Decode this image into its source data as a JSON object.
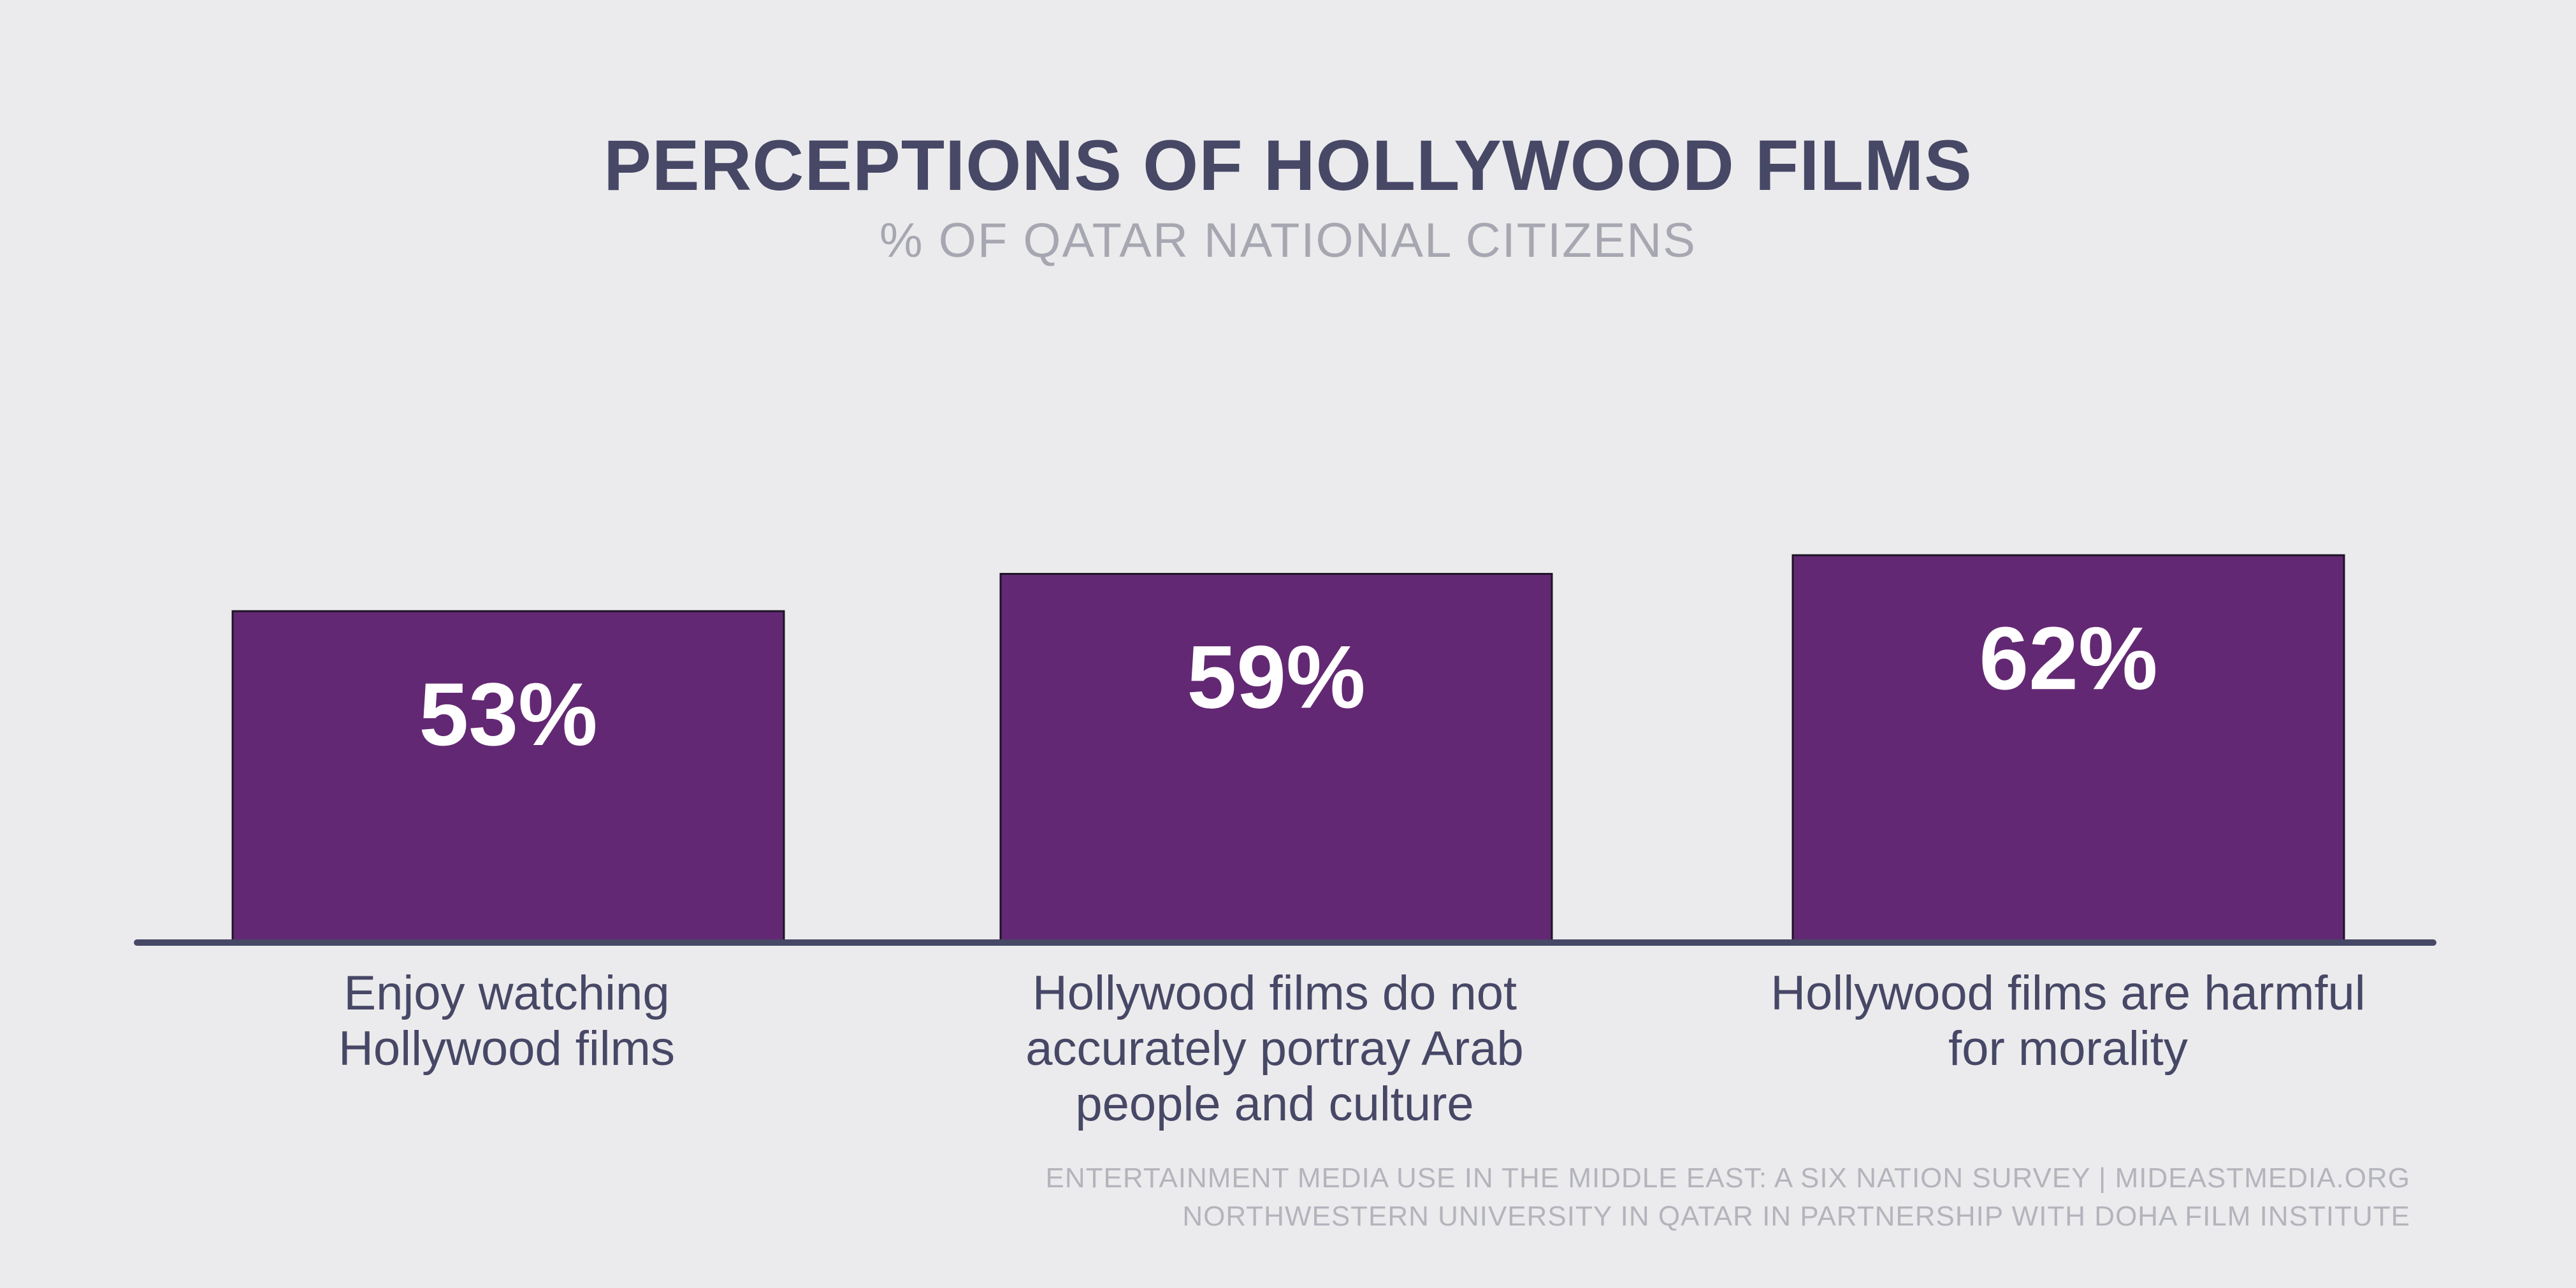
{
  "title": "PERCEPTIONS OF HOLLYWOOD FILMS",
  "subtitle": "% OF QATAR NATIONAL CITIZENS",
  "chart_data": {
    "type": "bar",
    "title": "PERCEPTIONS OF HOLLYWOOD FILMS",
    "subtitle": "% OF QATAR NATIONAL CITIZENS",
    "categories": [
      "Enjoy watching Hollywood films",
      "Hollywood films do not accurately portray Arab people and culture",
      "Hollywood films are harmful for morality"
    ],
    "values": [
      53,
      59,
      62
    ],
    "value_labels": [
      "53%",
      "59%",
      "62%"
    ],
    "ylim": [
      0,
      100
    ],
    "grid": false,
    "legend": "none",
    "bar_color": "#632873"
  },
  "labels": {
    "cat1_line1": "Enjoy watching",
    "cat1_line2": "Hollywood films",
    "cat2_line1": "Hollywood films do not",
    "cat2_line2": "accurately portray Arab",
    "cat2_line3": "people and culture",
    "cat3_line1": "Hollywood films are harmful",
    "cat3_line2": "for morality"
  },
  "source": {
    "line1": "ENTERTAINMENT MEDIA USE IN THE MIDDLE EAST: A SIX NATION SURVEY | MIDEASTMEDIA.ORG",
    "line2": "NORTHWESTERN UNIVERSITY IN QATAR IN PARTNERSHIP WITH DOHA FILM INSTITUTE"
  }
}
